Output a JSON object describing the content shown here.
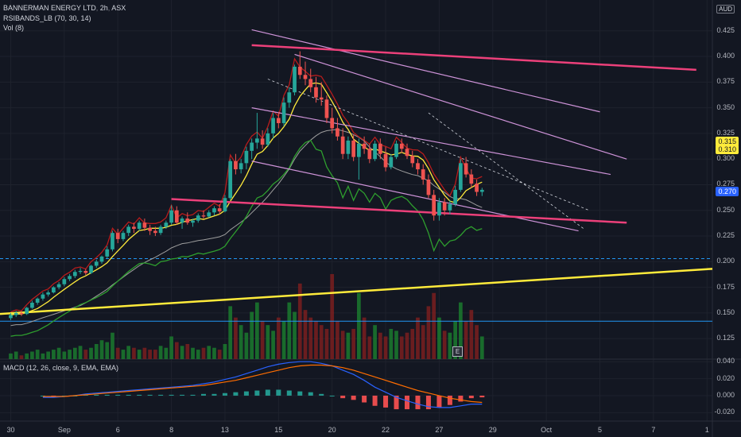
{
  "window": {
    "symbol": "BANNERMAN ENERGY LTD",
    "interval": "2h",
    "exchange": "ASX",
    "currency": "AUD",
    "earnings_marker": "E"
  },
  "legends": {
    "rsi_bands": "RSIBANDS_LB (70, 30, 14)",
    "volume": "Vol (8)",
    "macd": "MACD (12, 26, close, 9, EMA, EMA)"
  },
  "price_tags": {
    "upper": "0.315",
    "lower": "0.310",
    "last": "0.270"
  },
  "colors": {
    "background": "#131722",
    "up": "#26a69a",
    "down": "#ef5350",
    "volume_up": "#1b7a2e",
    "volume_down": "#7a1f1f",
    "trendline_pink": "#ec407a",
    "trendline_yellow": "#ffeb3b",
    "channel": "#ce93d8",
    "rsi_band_upper": "#b71c1c",
    "rsi_band_lower": "#2e9e2e",
    "macd_line": "#2962ff",
    "signal_line": "#ff6d00",
    "horizontal_level": "#2196f3"
  },
  "chart_data": [
    {
      "type": "candlestick",
      "title": "BANNERMAN ENERGY LTD, 2h, ASX",
      "y_axis_side": "right",
      "ylim": [
        0.105,
        0.455
      ],
      "y_ticks": [
        "0.425",
        "0.400",
        "0.375",
        "0.350",
        "0.325",
        "0.300",
        "0.275",
        "0.250",
        "0.225",
        "0.200",
        "0.175",
        "0.150",
        "0.125"
      ],
      "x_ticks": [
        "30",
        "Sep",
        "6",
        "8",
        "13",
        "15",
        "20",
        "22",
        "27",
        "29",
        "Oct",
        "5",
        "7",
        "1"
      ],
      "x_tick_index": [
        0,
        10,
        20,
        30,
        40,
        50,
        60,
        70,
        80,
        90,
        100,
        110,
        120,
        130
      ],
      "x_range": [
        -2,
        131
      ],
      "candles": [
        [
          0.145,
          0.15,
          0.143,
          0.148
        ],
        [
          0.148,
          0.152,
          0.146,
          0.15
        ],
        [
          0.15,
          0.152,
          0.147,
          0.149
        ],
        [
          0.149,
          0.156,
          0.148,
          0.155
        ],
        [
          0.155,
          0.162,
          0.154,
          0.16
        ],
        [
          0.16,
          0.165,
          0.158,
          0.164
        ],
        [
          0.164,
          0.17,
          0.162,
          0.168
        ],
        [
          0.168,
          0.172,
          0.166,
          0.17
        ],
        [
          0.17,
          0.176,
          0.169,
          0.175
        ],
        [
          0.175,
          0.18,
          0.173,
          0.178
        ],
        [
          0.178,
          0.185,
          0.176,
          0.183
        ],
        [
          0.183,
          0.188,
          0.181,
          0.186
        ],
        [
          0.186,
          0.192,
          0.184,
          0.19
        ],
        [
          0.19,
          0.194,
          0.188,
          0.191
        ],
        [
          0.191,
          0.193,
          0.187,
          0.189
        ],
        [
          0.189,
          0.197,
          0.188,
          0.196
        ],
        [
          0.196,
          0.202,
          0.194,
          0.2
        ],
        [
          0.2,
          0.206,
          0.198,
          0.205
        ],
        [
          0.205,
          0.215,
          0.203,
          0.212
        ],
        [
          0.212,
          0.23,
          0.21,
          0.228
        ],
        [
          0.228,
          0.232,
          0.218,
          0.222
        ],
        [
          0.222,
          0.23,
          0.22,
          0.228
        ],
        [
          0.228,
          0.236,
          0.225,
          0.234
        ],
        [
          0.234,
          0.238,
          0.228,
          0.232
        ],
        [
          0.232,
          0.24,
          0.23,
          0.238
        ],
        [
          0.238,
          0.242,
          0.23,
          0.233
        ],
        [
          0.233,
          0.236,
          0.226,
          0.23
        ],
        [
          0.23,
          0.234,
          0.225,
          0.228
        ],
        [
          0.228,
          0.236,
          0.226,
          0.234
        ],
        [
          0.234,
          0.24,
          0.232,
          0.238
        ],
        [
          0.238,
          0.255,
          0.236,
          0.25
        ],
        [
          0.25,
          0.254,
          0.236,
          0.238
        ],
        [
          0.238,
          0.244,
          0.232,
          0.242
        ],
        [
          0.242,
          0.248,
          0.236,
          0.238
        ],
        [
          0.238,
          0.242,
          0.234,
          0.24
        ],
        [
          0.24,
          0.247,
          0.238,
          0.245
        ],
        [
          0.245,
          0.25,
          0.242,
          0.244
        ],
        [
          0.244,
          0.25,
          0.243,
          0.248
        ],
        [
          0.248,
          0.254,
          0.245,
          0.252
        ],
        [
          0.252,
          0.256,
          0.246,
          0.249
        ],
        [
          0.249,
          0.265,
          0.248,
          0.262
        ],
        [
          0.262,
          0.3,
          0.26,
          0.298
        ],
        [
          0.298,
          0.305,
          0.285,
          0.29
        ],
        [
          0.29,
          0.3,
          0.286,
          0.296
        ],
        [
          0.296,
          0.312,
          0.29,
          0.308
        ],
        [
          0.308,
          0.32,
          0.3,
          0.316
        ],
        [
          0.316,
          0.345,
          0.31,
          0.32
        ],
        [
          0.32,
          0.328,
          0.31,
          0.314
        ],
        [
          0.314,
          0.33,
          0.312,
          0.325
        ],
        [
          0.325,
          0.345,
          0.32,
          0.34
        ],
        [
          0.34,
          0.346,
          0.33,
          0.335
        ],
        [
          0.335,
          0.36,
          0.332,
          0.355
        ],
        [
          0.355,
          0.37,
          0.35,
          0.365
        ],
        [
          0.365,
          0.392,
          0.362,
          0.39
        ],
        [
          0.39,
          0.405,
          0.378,
          0.382
        ],
        [
          0.382,
          0.395,
          0.372,
          0.378
        ],
        [
          0.378,
          0.388,
          0.365,
          0.37
        ],
        [
          0.37,
          0.38,
          0.355,
          0.36
        ],
        [
          0.36,
          0.375,
          0.352,
          0.358
        ],
        [
          0.358,
          0.362,
          0.335,
          0.34
        ],
        [
          0.34,
          0.35,
          0.325,
          0.33
        ],
        [
          0.33,
          0.34,
          0.318,
          0.322
        ],
        [
          0.322,
          0.33,
          0.3,
          0.305
        ],
        [
          0.305,
          0.322,
          0.3,
          0.318
        ],
        [
          0.318,
          0.324,
          0.298,
          0.302
        ],
        [
          0.302,
          0.32,
          0.28,
          0.315
        ],
        [
          0.315,
          0.322,
          0.305,
          0.31
        ],
        [
          0.31,
          0.315,
          0.296,
          0.3
        ],
        [
          0.3,
          0.318,
          0.298,
          0.315
        ],
        [
          0.315,
          0.32,
          0.3,
          0.305
        ],
        [
          0.305,
          0.312,
          0.288,
          0.292
        ],
        [
          0.292,
          0.305,
          0.29,
          0.302
        ],
        [
          0.302,
          0.318,
          0.3,
          0.315
        ],
        [
          0.315,
          0.32,
          0.306,
          0.31
        ],
        [
          0.31,
          0.315,
          0.3,
          0.303
        ],
        [
          0.303,
          0.308,
          0.292,
          0.296
        ],
        [
          0.296,
          0.3,
          0.285,
          0.29
        ],
        [
          0.29,
          0.295,
          0.275,
          0.28
        ],
        [
          0.28,
          0.285,
          0.262,
          0.265
        ],
        [
          0.265,
          0.27,
          0.24,
          0.245
        ],
        [
          0.245,
          0.262,
          0.24,
          0.258
        ],
        [
          0.258,
          0.262,
          0.245,
          0.25
        ],
        [
          0.25,
          0.26,
          0.246,
          0.256
        ],
        [
          0.256,
          0.274,
          0.254,
          0.27
        ],
        [
          0.27,
          0.3,
          0.268,
          0.296
        ],
        [
          0.296,
          0.302,
          0.282,
          0.285
        ],
        [
          0.285,
          0.29,
          0.272,
          0.276
        ],
        [
          0.276,
          0.28,
          0.264,
          0.268
        ],
        [
          0.268,
          0.272,
          0.264,
          0.27
        ]
      ],
      "volume": [
        3,
        4,
        2,
        3,
        4,
        5,
        3,
        4,
        5,
        6,
        4,
        5,
        6,
        7,
        5,
        6,
        8,
        10,
        9,
        14,
        6,
        5,
        7,
        6,
        5,
        6,
        5,
        5,
        7,
        6,
        12,
        9,
        7,
        8,
        6,
        5,
        6,
        7,
        6,
        5,
        8,
        28,
        22,
        18,
        14,
        25,
        30,
        20,
        18,
        15,
        22,
        20,
        30,
        25,
        40,
        26,
        22,
        20,
        18,
        16,
        45,
        20,
        15,
        14,
        16,
        35,
        22,
        12,
        18,
        14,
        12,
        16,
        15,
        12,
        14,
        16,
        22,
        18,
        28,
        35,
        22,
        15,
        14,
        20,
        30,
        20,
        26,
        18,
        12
      ],
      "volume_ylim": [
        0,
        190
      ],
      "trendlines": [
        {
          "from": [
            -2,
            0.149
          ],
          "to": [
            131,
            0.193
          ],
          "color": "#ffeb3b"
        },
        {
          "from": [
            30,
            0.261
          ],
          "to": [
            115,
            0.238
          ],
          "color": "#ec407a"
        },
        {
          "from": [
            45,
            0.411
          ],
          "to": [
            128,
            0.387
          ],
          "color": "#ec407a"
        }
      ],
      "horizontal_levels": [
        {
          "value": 0.203,
          "style": "dashed"
        },
        {
          "value": 0.142,
          "style": "solid"
        }
      ]
    },
    {
      "type": "line",
      "title": "MACD (12, 26, close, 9, EMA, EMA)",
      "y_axis_side": "right",
      "ylim": [
        -0.03,
        0.043
      ],
      "y_ticks": [
        "0.040",
        "0.020",
        "0.000",
        "-0.020"
      ],
      "series": [
        {
          "name": "MACD",
          "color": "#2962ff",
          "values": [
            -0.002,
            -0.002,
            -0.001,
            0,
            0.002,
            0.003,
            0.004,
            0.005,
            0.006,
            0.007,
            0.008,
            0.009,
            0.01,
            0.011,
            0.012,
            0.014,
            0.016,
            0.019,
            0.022,
            0.026,
            0.03,
            0.034,
            0.037,
            0.039,
            0.04,
            0.04,
            0.038,
            0.035,
            0.03,
            0.025,
            0.018,
            0.01,
            0.004,
            -0.002,
            -0.006,
            -0.01,
            -0.013,
            -0.014,
            -0.014,
            -0.012,
            -0.01,
            -0.01
          ]
        },
        {
          "name": "Signal",
          "color": "#ff6d00",
          "values": [
            -0.001,
            -0.001,
            -0.001,
            0,
            0.001,
            0.002,
            0.003,
            0.004,
            0.005,
            0.006,
            0.007,
            0.008,
            0.009,
            0.01,
            0.011,
            0.012,
            0.014,
            0.016,
            0.018,
            0.021,
            0.024,
            0.027,
            0.03,
            0.033,
            0.035,
            0.036,
            0.036,
            0.035,
            0.033,
            0.03,
            0.026,
            0.022,
            0.018,
            0.014,
            0.01,
            0.006,
            0.003,
            0,
            -0.003,
            -0.005,
            -0.007,
            -0.008
          ]
        }
      ],
      "histogram": [
        0,
        -0.001,
        0,
        0,
        0.001,
        0.001,
        0.001,
        0.001,
        0.001,
        0.001,
        0.001,
        0.001,
        0.001,
        0.001,
        0.001,
        0.002,
        0.002,
        0.003,
        0.004,
        0.005,
        0.006,
        0.007,
        0.007,
        0.006,
        0.005,
        0.004,
        0.002,
        0,
        -0.003,
        -0.005,
        -0.008,
        -0.012,
        -0.014,
        -0.016,
        -0.016,
        -0.016,
        -0.016,
        -0.014,
        -0.011,
        -0.007,
        -0.003,
        -0.002
      ]
    }
  ]
}
